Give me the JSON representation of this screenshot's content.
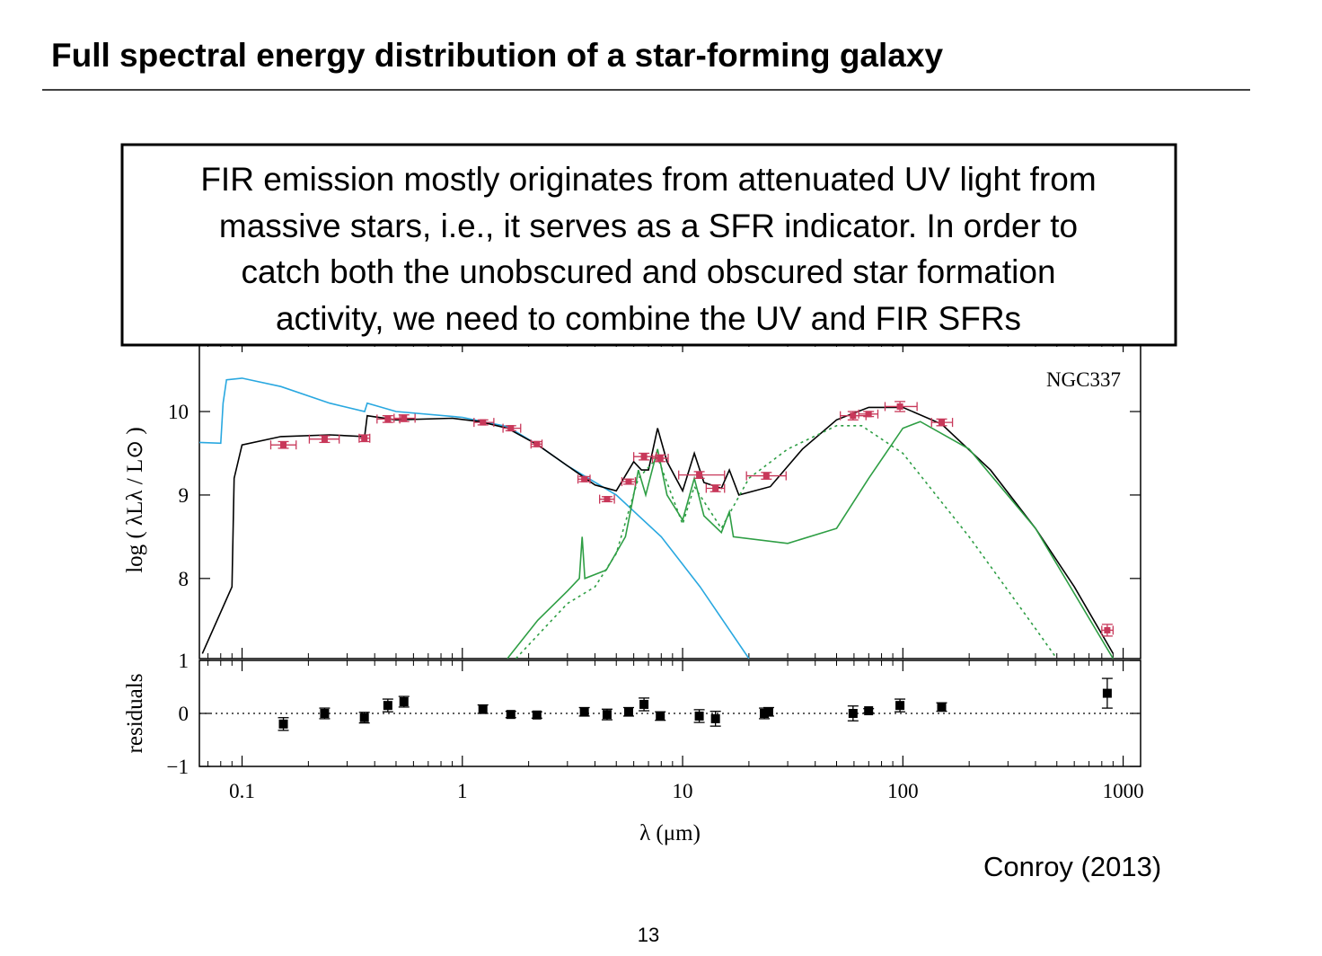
{
  "title": "Full spectral energy distribution of a star-forming galaxy",
  "callout": [
    "FIR emission mostly originates from attenuated UV light from",
    "massive stars, i.e., it serves as a SFR indicator. In order to",
    "catch both the unobscured and obscured star formation",
    "activity, we need to combine the UV and FIR SFRs"
  ],
  "citation": "Conroy (2013)",
  "page_number": "13",
  "chart_data": [
    {
      "type": "line",
      "annotation": "NGC337",
      "ylabel": "log ( λLλ / L⊙ )",
      "xscale": "log",
      "xlim": [
        0.064,
        1200
      ],
      "xticks": [
        0.1,
        1,
        10,
        100,
        1000
      ],
      "ylim": [
        7.04,
        10.84
      ],
      "yticks": [
        8,
        9,
        10
      ],
      "series": [
        {
          "color": "#29a8e0",
          "style": "solid",
          "x": [
            0.064,
            0.08,
            0.082,
            0.085,
            0.1,
            0.15,
            0.25,
            0.36,
            0.37,
            0.5,
            1,
            1.6,
            2.2,
            3,
            5,
            8,
            12,
            20
          ],
          "values": [
            9.63,
            9.62,
            10.1,
            10.38,
            10.4,
            10.3,
            10.1,
            10.0,
            10.1,
            10.0,
            9.93,
            9.82,
            9.6,
            9.35,
            9.0,
            8.5,
            7.9,
            7.04
          ]
        },
        {
          "color": "#000000",
          "style": "solid",
          "x": [
            0.066,
            0.09,
            0.092,
            0.1,
            0.15,
            0.25,
            0.36,
            0.37,
            0.5,
            0.9,
            1.2,
            1.6,
            2.2,
            3,
            4,
            5,
            6,
            6.5,
            7,
            7.7,
            8.5,
            10,
            11.3,
            12.5,
            15,
            16.3,
            18,
            25,
            35,
            50,
            70,
            100,
            150,
            250,
            400,
            600,
            900
          ],
          "values": [
            7.1,
            7.9,
            9.2,
            9.6,
            9.7,
            9.72,
            9.7,
            9.95,
            9.9,
            9.92,
            9.88,
            9.8,
            9.6,
            9.35,
            9.12,
            9.05,
            9.4,
            9.3,
            9.3,
            9.8,
            9.4,
            9.05,
            9.5,
            9.15,
            9.08,
            9.3,
            9.0,
            9.1,
            9.55,
            9.9,
            10.05,
            10.05,
            9.85,
            9.3,
            8.6,
            7.9,
            7.1
          ]
        },
        {
          "color": "#2e9e44",
          "style": "solid",
          "x": [
            1.6,
            2.2,
            3,
            3.4,
            3.5,
            3.6,
            4.5,
            5.5,
            6,
            6.3,
            6.8,
            7.7,
            8.5,
            10,
            11.3,
            12.5,
            15,
            16.3,
            17,
            30,
            50,
            70,
            100,
            120,
            200,
            400,
            900
          ],
          "values": [
            7.04,
            7.5,
            7.85,
            8.0,
            8.5,
            8.0,
            8.1,
            8.5,
            9.0,
            9.3,
            9.0,
            9.55,
            9.0,
            8.7,
            9.2,
            8.75,
            8.55,
            8.8,
            8.5,
            8.42,
            8.6,
            9.2,
            9.8,
            9.88,
            9.55,
            8.6,
            7.04
          ]
        },
        {
          "color": "#2e9e44",
          "style": "dotted",
          "x": [
            1.75,
            3,
            4,
            5,
            6.3,
            7.7,
            10,
            11.3,
            15,
            20,
            30,
            50,
            65,
            100,
            200,
            400,
            500
          ],
          "values": [
            7.04,
            7.7,
            7.9,
            8.3,
            9.2,
            9.45,
            8.65,
            9.1,
            8.6,
            9.2,
            9.55,
            9.83,
            9.83,
            9.5,
            8.5,
            7.4,
            7.04
          ]
        }
      ],
      "points": {
        "color": "#c8385a",
        "x": [
          0.154,
          0.237,
          0.359,
          0.459,
          0.543,
          1.24,
          1.66,
          2.18,
          3.58,
          4.54,
          5.69,
          6.68,
          7.92,
          11.9,
          14.1,
          24.0,
          59.4,
          69.9,
          97.0,
          150,
          847
        ],
        "xmin": [
          0.135,
          0.202,
          0.34,
          0.41,
          0.49,
          1.13,
          1.53,
          2.05,
          3.35,
          4.2,
          5.3,
          6.0,
          7.3,
          9.6,
          12.8,
          19.5,
          52,
          63,
          83,
          135,
          800
        ],
        "xmax": [
          0.176,
          0.276,
          0.38,
          0.52,
          0.61,
          1.39,
          1.84,
          2.3,
          3.8,
          4.9,
          6.1,
          7.6,
          8.6,
          15.5,
          15.5,
          29.5,
          68,
          77,
          116,
          168,
          900
        ],
        "values": [
          9.6,
          9.67,
          9.68,
          9.91,
          9.92,
          9.87,
          9.8,
          9.61,
          9.19,
          8.95,
          9.16,
          9.46,
          9.44,
          9.24,
          9.08,
          9.23,
          9.95,
          9.97,
          10.06,
          9.87,
          7.38
        ],
        "errors": [
          0.04,
          0.04,
          0.04,
          0.04,
          0.04,
          0.03,
          0.03,
          0.03,
          0.03,
          0.03,
          0.03,
          0.04,
          0.04,
          0.04,
          0.04,
          0.04,
          0.05,
          0.03,
          0.06,
          0.04,
          0.07
        ]
      }
    },
    {
      "type": "scatter",
      "ylabel": "residuals",
      "xlabel": "λ (μm)",
      "xscale": "log",
      "xlim": [
        0.064,
        1200
      ],
      "xticks": [
        0.1,
        1,
        10,
        100,
        1000
      ],
      "ylim": [
        -1,
        1
      ],
      "yticks": [
        {
          "value": -1,
          "label": "−1"
        },
        0,
        1
      ],
      "zero_line": true,
      "color": "#000000",
      "x": [
        0.154,
        0.237,
        0.359,
        0.459,
        0.543,
        1.24,
        1.66,
        2.18,
        3.58,
        4.54,
        5.69,
        6.68,
        7.92,
        11.9,
        14.1,
        23.5,
        24.6,
        59.4,
        69.9,
        97.0,
        150,
        847
      ],
      "values": [
        -0.2,
        0.0,
        -0.08,
        0.15,
        0.22,
        0.08,
        -0.02,
        -0.03,
        0.03,
        -0.02,
        0.03,
        0.17,
        -0.05,
        -0.05,
        -0.1,
        0.0,
        0.03,
        0.0,
        0.05,
        0.15,
        0.12,
        0.38
      ],
      "errors": [
        0.12,
        0.1,
        0.1,
        0.12,
        0.1,
        0.08,
        0.06,
        0.06,
        0.08,
        0.1,
        0.08,
        0.12,
        0.08,
        0.12,
        0.14,
        0.1,
        0.08,
        0.14,
        0.04,
        0.12,
        0.08,
        0.28
      ]
    }
  ]
}
